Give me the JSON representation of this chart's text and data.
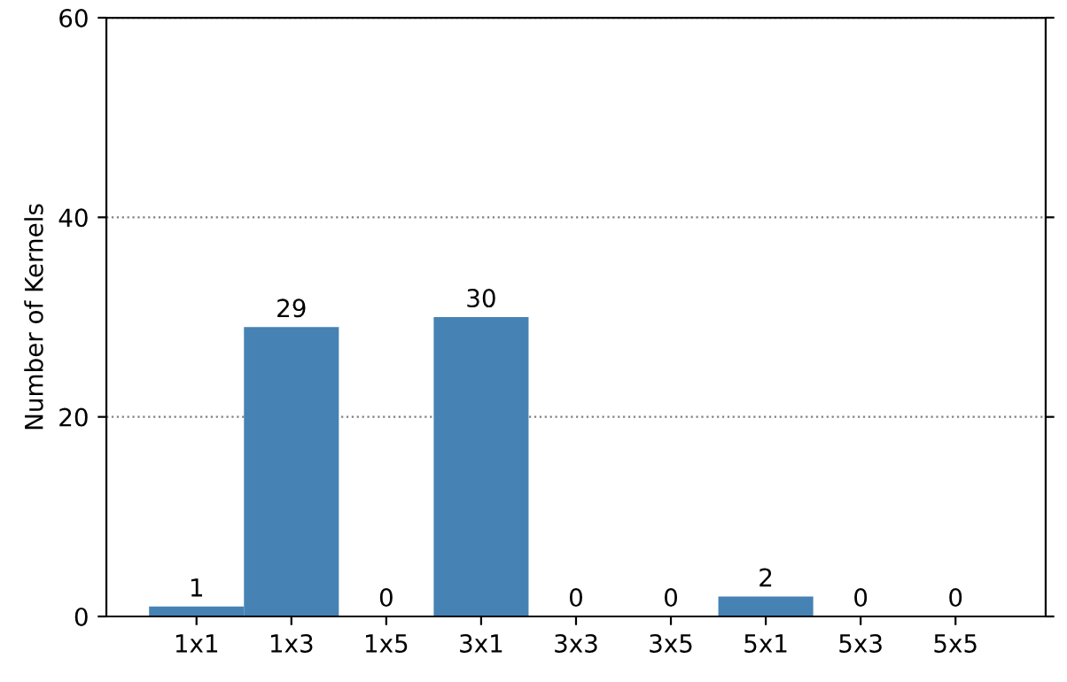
{
  "chart_data": {
    "type": "bar",
    "ylabel": "Number of Kernels",
    "categories": [
      "1x1",
      "1x3",
      "1x5",
      "3x1",
      "3x3",
      "3x5",
      "5x1",
      "5x3",
      "5x5"
    ],
    "values": [
      1,
      29,
      0,
      30,
      0,
      0,
      2,
      0,
      0
    ],
    "color": "#4682b4",
    "ylim": [
      0,
      60
    ],
    "yticks": [
      0,
      20,
      40,
      60
    ],
    "grid": "y",
    "data_labels": true
  }
}
